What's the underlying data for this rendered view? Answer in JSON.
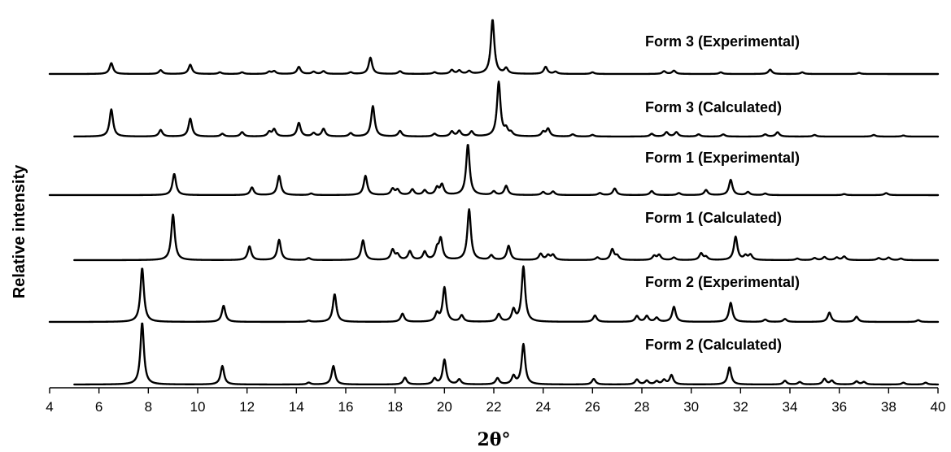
{
  "chart_data": {
    "type": "line",
    "title": "",
    "xlabel": "2θ°",
    "ylabel": "Relative intensity",
    "xlim": [
      4,
      40
    ],
    "x_ticks": [
      4,
      6,
      8,
      10,
      12,
      14,
      16,
      18,
      20,
      22,
      24,
      26,
      28,
      30,
      32,
      34,
      36,
      38,
      40
    ],
    "grid": false,
    "y_ticks_shown": false,
    "peak_width": 0.085,
    "series": [
      {
        "name": "Form 3 (Experimental)",
        "x_range": [
          4,
          40
        ],
        "max_height": 0.88,
        "peaks": [
          [
            6.5,
            0.2
          ],
          [
            8.5,
            0.07
          ],
          [
            9.7,
            0.17
          ],
          [
            10.9,
            0.03
          ],
          [
            11.8,
            0.03
          ],
          [
            12.9,
            0.04
          ],
          [
            13.1,
            0.05
          ],
          [
            14.1,
            0.13
          ],
          [
            14.7,
            0.04
          ],
          [
            15.1,
            0.05
          ],
          [
            16.2,
            0.03
          ],
          [
            17.0,
            0.3
          ],
          [
            18.2,
            0.05
          ],
          [
            19.6,
            0.03
          ],
          [
            20.3,
            0.07
          ],
          [
            20.6,
            0.06
          ],
          [
            21.0,
            0.05
          ],
          [
            21.95,
            1.0
          ],
          [
            22.5,
            0.1
          ],
          [
            24.1,
            0.13
          ],
          [
            24.5,
            0.04
          ],
          [
            26.0,
            0.03
          ],
          [
            28.9,
            0.05
          ],
          [
            29.3,
            0.06
          ],
          [
            31.2,
            0.03
          ],
          [
            33.2,
            0.08
          ],
          [
            34.5,
            0.03
          ],
          [
            36.8,
            0.02
          ]
        ]
      },
      {
        "name": "Form 3 (Calculated)",
        "x_range": [
          5,
          40
        ],
        "max_height": 0.88,
        "peaks": [
          [
            6.5,
            0.5
          ],
          [
            8.5,
            0.12
          ],
          [
            9.7,
            0.33
          ],
          [
            11.0,
            0.05
          ],
          [
            11.8,
            0.08
          ],
          [
            12.9,
            0.08
          ],
          [
            13.1,
            0.13
          ],
          [
            14.1,
            0.25
          ],
          [
            14.7,
            0.06
          ],
          [
            15.1,
            0.14
          ],
          [
            16.2,
            0.06
          ],
          [
            17.1,
            0.56
          ],
          [
            18.2,
            0.1
          ],
          [
            19.6,
            0.05
          ],
          [
            20.3,
            0.09
          ],
          [
            20.6,
            0.1
          ],
          [
            21.1,
            0.09
          ],
          [
            22.2,
            1.0
          ],
          [
            22.5,
            0.12
          ],
          [
            22.7,
            0.06
          ],
          [
            24.0,
            0.08
          ],
          [
            24.2,
            0.14
          ],
          [
            25.2,
            0.04
          ],
          [
            26.0,
            0.03
          ],
          [
            28.4,
            0.05
          ],
          [
            29.0,
            0.08
          ],
          [
            29.4,
            0.08
          ],
          [
            30.3,
            0.04
          ],
          [
            31.3,
            0.04
          ],
          [
            33.0,
            0.04
          ],
          [
            33.5,
            0.08
          ],
          [
            35.0,
            0.03
          ],
          [
            37.4,
            0.03
          ],
          [
            38.6,
            0.02
          ]
        ]
      },
      {
        "name": "Form 1 (Experimental)",
        "x_range": [
          4,
          40
        ],
        "max_height": 0.89,
        "peaks": [
          [
            9.05,
            0.42
          ],
          [
            12.2,
            0.15
          ],
          [
            13.3,
            0.38
          ],
          [
            14.6,
            0.03
          ],
          [
            16.8,
            0.38
          ],
          [
            17.9,
            0.12
          ],
          [
            18.1,
            0.1
          ],
          [
            18.7,
            0.11
          ],
          [
            19.2,
            0.09
          ],
          [
            19.7,
            0.14
          ],
          [
            19.9,
            0.2
          ],
          [
            20.95,
            1.0
          ],
          [
            22.0,
            0.07
          ],
          [
            22.5,
            0.18
          ],
          [
            24.0,
            0.06
          ],
          [
            24.4,
            0.07
          ],
          [
            26.3,
            0.04
          ],
          [
            26.9,
            0.13
          ],
          [
            28.4,
            0.08
          ],
          [
            29.5,
            0.04
          ],
          [
            30.6,
            0.1
          ],
          [
            31.6,
            0.3
          ],
          [
            32.3,
            0.06
          ],
          [
            33.0,
            0.03
          ],
          [
            36.2,
            0.02
          ],
          [
            37.9,
            0.04
          ]
        ]
      },
      {
        "name": "Form 1 (Calculated)",
        "x_range": [
          5,
          40
        ],
        "max_height": 0.89,
        "peaks": [
          [
            9.0,
            0.9
          ],
          [
            12.1,
            0.27
          ],
          [
            13.3,
            0.4
          ],
          [
            14.5,
            0.04
          ],
          [
            16.7,
            0.39
          ],
          [
            17.9,
            0.2
          ],
          [
            18.1,
            0.1
          ],
          [
            18.6,
            0.17
          ],
          [
            19.2,
            0.16
          ],
          [
            19.7,
            0.2
          ],
          [
            19.85,
            0.4
          ],
          [
            21.0,
            1.0
          ],
          [
            21.9,
            0.09
          ],
          [
            22.6,
            0.28
          ],
          [
            23.9,
            0.12
          ],
          [
            24.2,
            0.09
          ],
          [
            24.4,
            0.1
          ],
          [
            26.2,
            0.05
          ],
          [
            26.8,
            0.21
          ],
          [
            27.0,
            0.08
          ],
          [
            28.5,
            0.08
          ],
          [
            28.7,
            0.1
          ],
          [
            29.3,
            0.05
          ],
          [
            30.4,
            0.13
          ],
          [
            30.6,
            0.06
          ],
          [
            31.8,
            0.46
          ],
          [
            32.2,
            0.08
          ],
          [
            32.4,
            0.1
          ],
          [
            34.3,
            0.03
          ],
          [
            35.0,
            0.04
          ],
          [
            35.4,
            0.06
          ],
          [
            35.9,
            0.05
          ],
          [
            36.2,
            0.07
          ],
          [
            37.6,
            0.04
          ],
          [
            38.0,
            0.05
          ],
          [
            38.5,
            0.03
          ]
        ]
      },
      {
        "name": "Form 2 (Experimental)",
        "x_range": [
          4,
          40
        ],
        "max_height": 0.95,
        "peaks": [
          [
            7.75,
            0.93
          ],
          [
            11.05,
            0.28
          ],
          [
            14.5,
            0.02
          ],
          [
            15.55,
            0.48
          ],
          [
            18.3,
            0.14
          ],
          [
            19.7,
            0.14
          ],
          [
            20.0,
            0.59
          ],
          [
            20.7,
            0.11
          ],
          [
            22.2,
            0.13
          ],
          [
            22.8,
            0.2
          ],
          [
            23.2,
            0.95
          ],
          [
            26.1,
            0.11
          ],
          [
            27.8,
            0.1
          ],
          [
            28.2,
            0.1
          ],
          [
            28.6,
            0.07
          ],
          [
            29.3,
            0.26
          ],
          [
            31.6,
            0.33
          ],
          [
            33.0,
            0.04
          ],
          [
            33.8,
            0.05
          ],
          [
            35.6,
            0.16
          ],
          [
            36.7,
            0.09
          ],
          [
            39.2,
            0.03
          ]
        ]
      },
      {
        "name": "Form 2 (Calculated)",
        "x_range": [
          5,
          40
        ],
        "max_height": 0.95,
        "peaks": [
          [
            7.75,
            1.0
          ],
          [
            11.0,
            0.3
          ],
          [
            14.5,
            0.03
          ],
          [
            15.5,
            0.3
          ],
          [
            18.4,
            0.11
          ],
          [
            19.6,
            0.09
          ],
          [
            20.0,
            0.4
          ],
          [
            20.6,
            0.08
          ],
          [
            22.15,
            0.1
          ],
          [
            22.8,
            0.13
          ],
          [
            23.2,
            0.65
          ],
          [
            26.05,
            0.09
          ],
          [
            27.8,
            0.08
          ],
          [
            28.2,
            0.06
          ],
          [
            28.6,
            0.05
          ],
          [
            28.9,
            0.07
          ],
          [
            29.2,
            0.15
          ],
          [
            31.55,
            0.28
          ],
          [
            33.8,
            0.06
          ],
          [
            34.4,
            0.04
          ],
          [
            35.4,
            0.09
          ],
          [
            35.7,
            0.06
          ],
          [
            36.7,
            0.05
          ],
          [
            37.0,
            0.04
          ],
          [
            38.6,
            0.03
          ],
          [
            39.5,
            0.03
          ]
        ]
      }
    ]
  }
}
